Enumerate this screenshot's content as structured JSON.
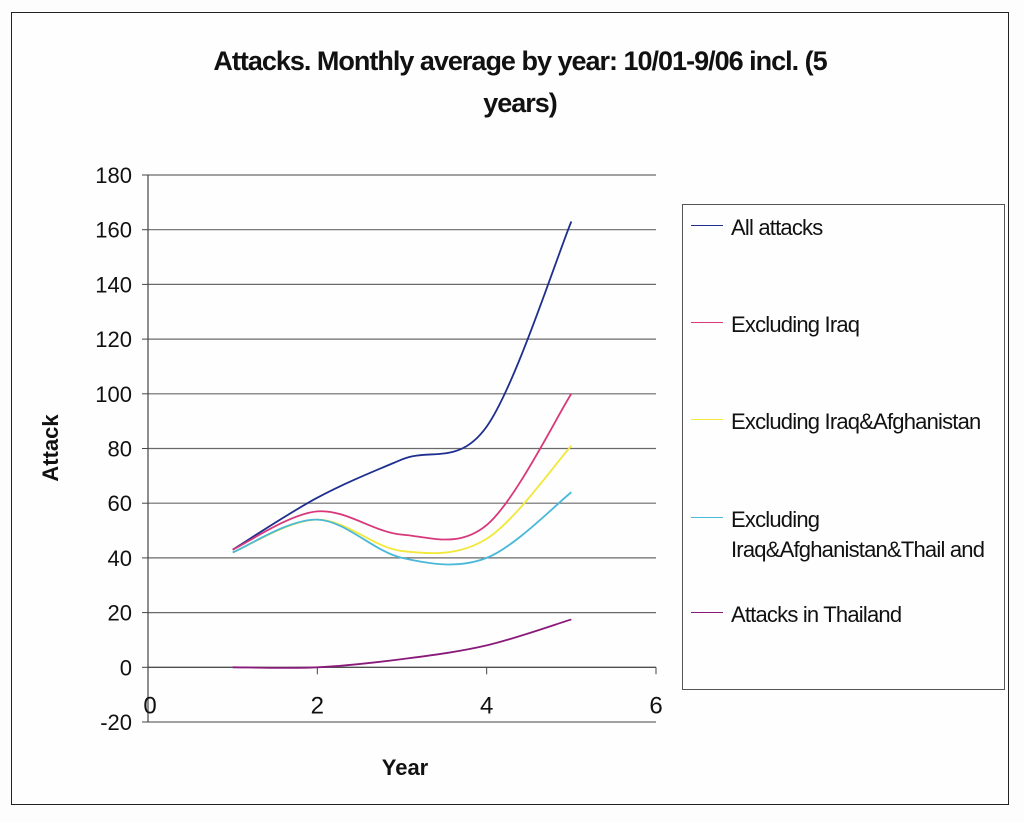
{
  "chart_data": {
    "type": "line",
    "title": "Attacks. Monthly average by year: 10/01-9/06 incl. (5 years)",
    "title_lines": [
      "Attacks. Monthly average by year: 10/01-9/06 incl. (5",
      "years)"
    ],
    "xlabel": "Year",
    "ylabel": "Attack",
    "xlim": [
      0,
      6
    ],
    "ylim": [
      -20,
      180
    ],
    "xticks": [
      0,
      2,
      4,
      6
    ],
    "yticks": [
      -20,
      0,
      20,
      40,
      60,
      80,
      100,
      120,
      140,
      160,
      180
    ],
    "grid": true,
    "smoothed": true,
    "legend_position": "right",
    "x": [
      1,
      2,
      3,
      4,
      5
    ],
    "series": [
      {
        "name": "All attacks",
        "color": "#1f2f8f",
        "values": [
          43,
          62,
          76,
          88,
          163
        ]
      },
      {
        "name": "Excluding Iraq",
        "color": "#d8387a",
        "values": [
          43,
          57,
          48.5,
          52,
          100
        ]
      },
      {
        "name": "Excluding Iraq&Afghanistan",
        "color": "#f2e83a",
        "values": [
          42,
          54,
          42.5,
          47,
          81
        ]
      },
      {
        "name": "Excluding Iraq&Afghanistan&Thailand",
        "color": "#4ab8d8",
        "values": [
          42,
          54,
          40,
          40,
          64
        ]
      },
      {
        "name": "Attacks in Thailand",
        "color": "#8a1a7a",
        "values": [
          0,
          0,
          3,
          8,
          17.5
        ]
      }
    ]
  },
  "legend": [
    {
      "label": "All attacks"
    },
    {
      "label": "Excluding Iraq"
    },
    {
      "label": "Excluding Iraq&Afghanistan"
    },
    {
      "label": "Excluding Iraq&Afghanistan&Thail and"
    },
    {
      "label": "Attacks in Thailand"
    }
  ]
}
